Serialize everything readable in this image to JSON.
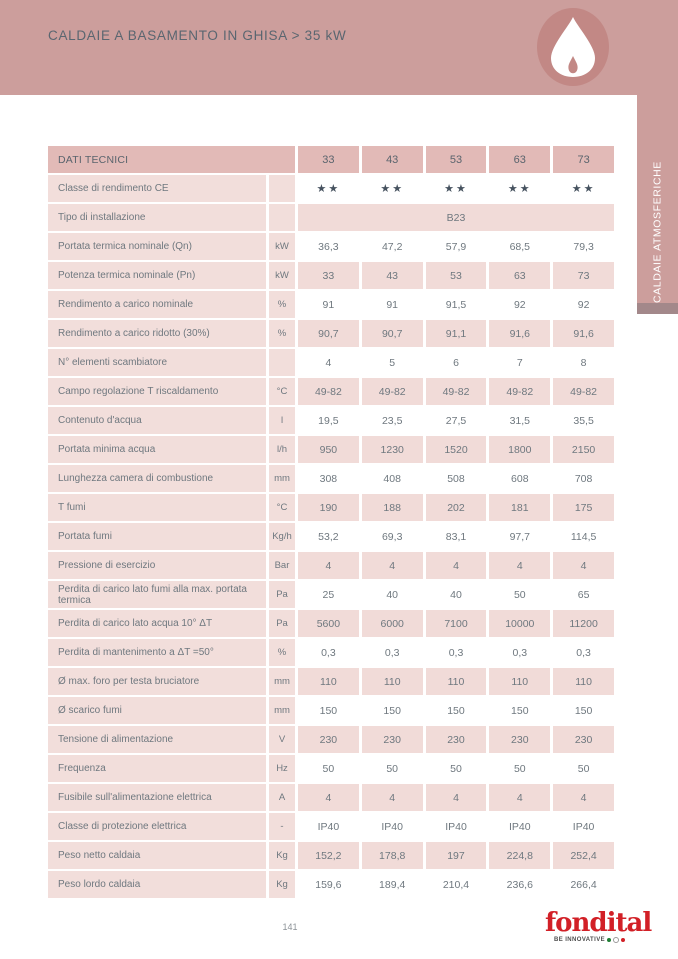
{
  "header": {
    "title": "CALDAIE A BASAMENTO IN GHISA > 35 kW"
  },
  "side_tab": {
    "label": "CALDAIE ATMOSFERICHE"
  },
  "colors": {
    "band_pink": "#cc9e9c",
    "badge_pink": "#c28885",
    "table_header_pink": "#e2bab7",
    "label_cell_pink": "#f2dedb",
    "value_cell_pink": "#f1dbd8",
    "side_cap_mauve": "#a3888a",
    "text_gray": "#6f787f",
    "star_color": "#46525f",
    "brand_red": "#d22027"
  },
  "table": {
    "header_label": "DATI TECNICI",
    "columns": [
      "33",
      "43",
      "53",
      "63",
      "73"
    ],
    "rows": [
      {
        "label": "Classe di rendimento CE",
        "unit": "",
        "values": [
          "★★",
          "★★",
          "★★",
          "★★",
          "★★"
        ],
        "stars": true
      },
      {
        "label": "Tipo di installazione",
        "unit": "",
        "values": [
          "B23"
        ]
      },
      {
        "label": "Portata termica nominale (Qn)",
        "unit": "kW",
        "values": [
          "36,3",
          "47,2",
          "57,9",
          "68,5",
          "79,3"
        ]
      },
      {
        "label": "Potenza termica nominale (Pn)",
        "unit": "kW",
        "values": [
          "33",
          "43",
          "53",
          "63",
          "73"
        ]
      },
      {
        "label": "Rendimento a carico nominale",
        "unit": "%",
        "values": [
          "91",
          "91",
          "91,5",
          "92",
          "92"
        ]
      },
      {
        "label": "Rendimento a carico ridotto (30%)",
        "unit": "%",
        "values": [
          "90,7",
          "90,7",
          "91,1",
          "91,6",
          "91,6"
        ]
      },
      {
        "label": "N° elementi scambiatore",
        "unit": "",
        "values": [
          "4",
          "5",
          "6",
          "7",
          "8"
        ]
      },
      {
        "label": "Campo regolazione T riscaldamento",
        "unit": "°C",
        "values": [
          "49-82",
          "49-82",
          "49-82",
          "49-82",
          "49-82"
        ]
      },
      {
        "label": "Contenuto d'acqua",
        "unit": "l",
        "values": [
          "19,5",
          "23,5",
          "27,5",
          "31,5",
          "35,5"
        ]
      },
      {
        "label": "Portata minima acqua",
        "unit": "l/h",
        "values": [
          "950",
          "1230",
          "1520",
          "1800",
          "2150"
        ]
      },
      {
        "label": "Lunghezza camera di combustione",
        "unit": "mm",
        "values": [
          "308",
          "408",
          "508",
          "608",
          "708"
        ]
      },
      {
        "label": "T fumi",
        "unit": "°C",
        "values": [
          "190",
          "188",
          "202",
          "181",
          "175"
        ]
      },
      {
        "label": "Portata fumi",
        "unit": "Kg/h",
        "values": [
          "53,2",
          "69,3",
          "83,1",
          "97,7",
          "114,5"
        ]
      },
      {
        "label": "Pressione di esercizio",
        "unit": "Bar",
        "values": [
          "4",
          "4",
          "4",
          "4",
          "4"
        ]
      },
      {
        "label": "Perdita di carico lato fumi alla max. portata termica",
        "unit": "Pa",
        "values": [
          "25",
          "40",
          "40",
          "50",
          "65"
        ]
      },
      {
        "label": "Perdita di carico lato acqua 10° ΔT",
        "unit": "Pa",
        "values": [
          "5600",
          "6000",
          "7100",
          "10000",
          "11200"
        ]
      },
      {
        "label": "Perdita di mantenimento a ΔT =50°",
        "unit": "%",
        "values": [
          "0,3",
          "0,3",
          "0,3",
          "0,3",
          "0,3"
        ]
      },
      {
        "label": "Ø max. foro per testa bruciatore",
        "unit": "mm",
        "values": [
          "110",
          "110",
          "110",
          "110",
          "110"
        ]
      },
      {
        "label": "Ø scarico fumi",
        "unit": "mm",
        "values": [
          "150",
          "150",
          "150",
          "150",
          "150"
        ]
      },
      {
        "label": "Tensione di alimentazione",
        "unit": "V",
        "values": [
          "230",
          "230",
          "230",
          "230",
          "230"
        ]
      },
      {
        "label": "Frequenza",
        "unit": "Hz",
        "values": [
          "50",
          "50",
          "50",
          "50",
          "50"
        ]
      },
      {
        "label": "Fusibile sull'alimentazione elettrica",
        "unit": "A",
        "values": [
          "4",
          "4",
          "4",
          "4",
          "4"
        ]
      },
      {
        "label": "Classe di protezione elettrica",
        "unit": "-",
        "values": [
          "IP40",
          "IP40",
          "IP40",
          "IP40",
          "IP40"
        ]
      },
      {
        "label": "Peso netto caldaia",
        "unit": "Kg",
        "values": [
          "152,2",
          "178,8",
          "197",
          "224,8",
          "252,4"
        ]
      },
      {
        "label": "Peso lordo caldaia",
        "unit": "Kg",
        "values": [
          "159,6",
          "189,4",
          "210,4",
          "236,6",
          "266,4"
        ]
      }
    ]
  },
  "footer": {
    "page_number": "141",
    "brand_name": "fondital",
    "brand_tagline": "BE INNOVATIVE"
  }
}
